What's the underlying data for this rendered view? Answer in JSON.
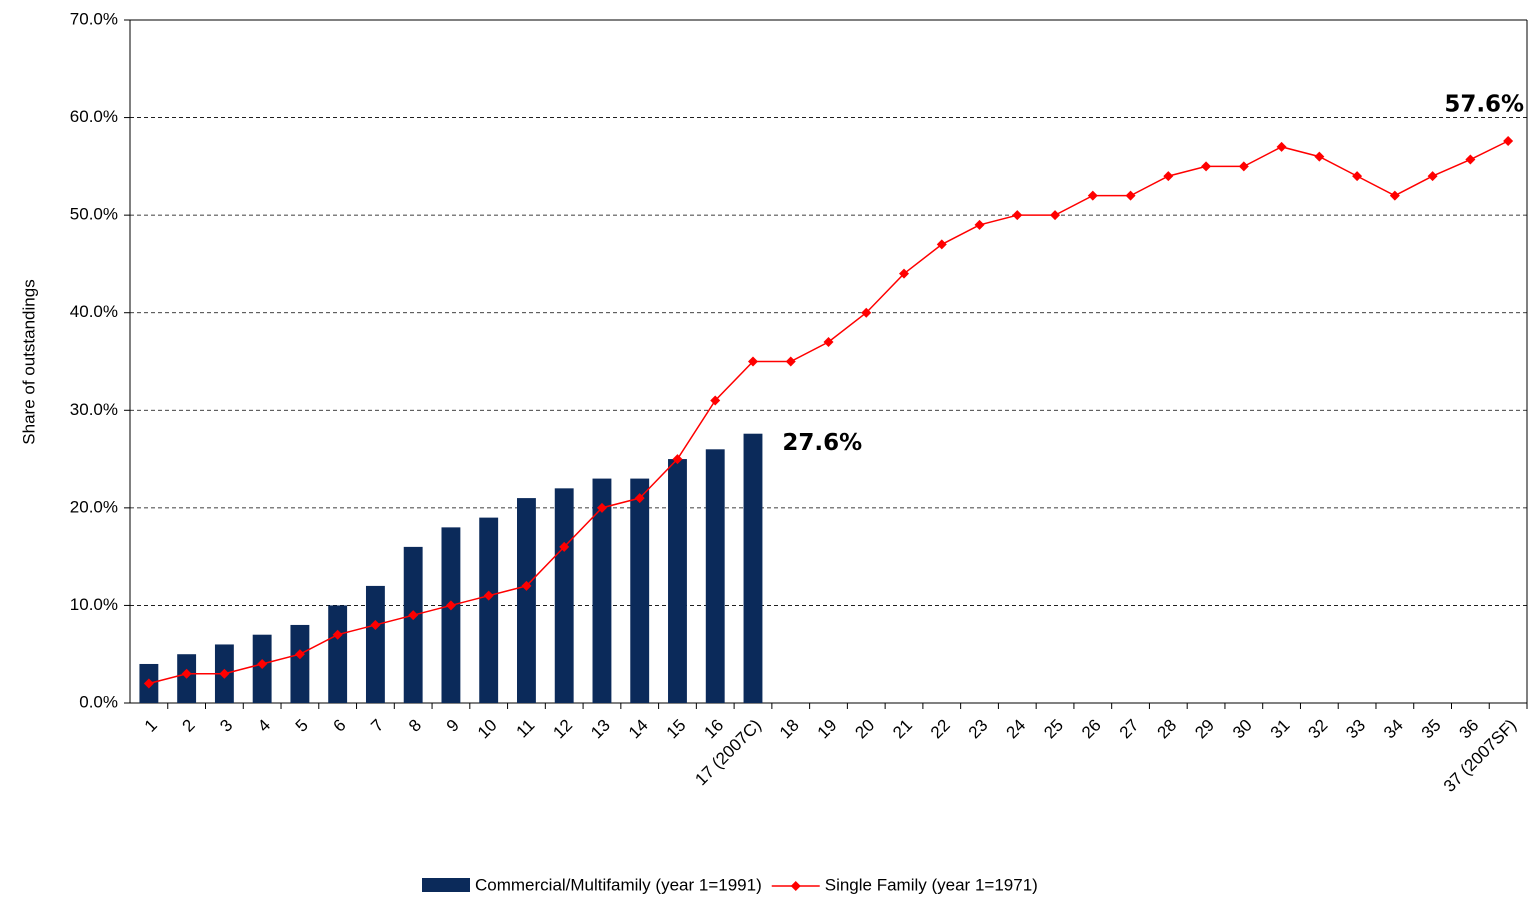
{
  "chart_data": {
    "type": "bar-line",
    "ylabel": "Share of outstandings",
    "categories": [
      "1",
      "2",
      "3",
      "4",
      "5",
      "6",
      "7",
      "8",
      "9",
      "10",
      "11",
      "12",
      "13",
      "14",
      "15",
      "16",
      "17 (2007C)",
      "18",
      "19",
      "20",
      "21",
      "22",
      "23",
      "24",
      "25",
      "26",
      "27",
      "28",
      "29",
      "30",
      "31",
      "32",
      "33",
      "34",
      "35",
      "36",
      "37 (2007SF)"
    ],
    "series": [
      {
        "name": "Commercial/Multifamily (year 1=1991)",
        "type": "bar",
        "color": "#0b2a5a",
        "values": [
          4,
          5,
          6,
          7,
          8,
          10,
          12,
          16,
          18,
          19,
          21,
          22,
          23,
          23,
          25,
          26,
          27.6,
          null,
          null,
          null,
          null,
          null,
          null,
          null,
          null,
          null,
          null,
          null,
          null,
          null,
          null,
          null,
          null,
          null,
          null,
          null,
          null
        ],
        "value_labels": [
          null,
          null,
          null,
          null,
          null,
          null,
          null,
          null,
          null,
          null,
          null,
          null,
          null,
          null,
          null,
          null,
          "27.6%",
          null,
          null,
          null,
          null,
          null,
          null,
          null,
          null,
          null,
          null,
          null,
          null,
          null,
          null,
          null,
          null,
          null,
          null,
          null,
          null
        ]
      },
      {
        "name": "Single Family (year 1=1971)",
        "type": "line",
        "color": "#ff0000",
        "values": [
          2,
          3,
          3,
          4,
          5,
          7,
          8,
          9,
          10,
          11,
          12,
          16,
          20,
          21,
          25,
          31,
          35,
          35,
          37,
          40,
          44,
          47,
          49,
          50,
          50,
          52,
          52,
          54,
          55,
          55,
          57,
          56,
          54,
          52,
          54,
          55.7,
          57.6
        ],
        "value_labels": [
          null,
          null,
          null,
          null,
          null,
          null,
          null,
          null,
          null,
          null,
          null,
          null,
          null,
          null,
          null,
          null,
          null,
          null,
          null,
          null,
          null,
          null,
          null,
          null,
          null,
          null,
          null,
          null,
          null,
          null,
          null,
          null,
          null,
          null,
          null,
          null,
          "57.6%"
        ]
      }
    ],
    "ylim": [
      0,
      70
    ],
    "yticks": [
      {
        "value": 0,
        "label": "0.0%"
      },
      {
        "value": 10,
        "label": "10.0%"
      },
      {
        "value": 20,
        "label": "20.0%"
      },
      {
        "value": 30,
        "label": "30.0%"
      },
      {
        "value": 40,
        "label": "40.0%"
      },
      {
        "value": 50,
        "label": "50.0%"
      },
      {
        "value": 60,
        "label": "60.0%"
      },
      {
        "value": 70,
        "label": "70.0%"
      }
    ],
    "grid": true,
    "legend": "bottom"
  }
}
